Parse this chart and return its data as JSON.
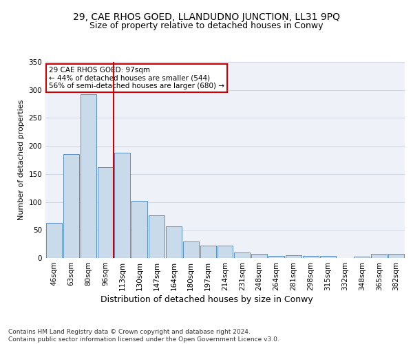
{
  "title": "29, CAE RHOS GOED, LLANDUDNO JUNCTION, LL31 9PQ",
  "subtitle": "Size of property relative to detached houses in Conwy",
  "xlabel": "Distribution of detached houses by size in Conwy",
  "ylabel": "Number of detached properties",
  "categories": [
    "46sqm",
    "63sqm",
    "80sqm",
    "96sqm",
    "113sqm",
    "130sqm",
    "147sqm",
    "164sqm",
    "180sqm",
    "197sqm",
    "214sqm",
    "231sqm",
    "248sqm",
    "264sqm",
    "281sqm",
    "298sqm",
    "315sqm",
    "332sqm",
    "348sqm",
    "365sqm",
    "382sqm"
  ],
  "values": [
    63,
    185,
    292,
    162,
    188,
    102,
    76,
    57,
    30,
    22,
    22,
    10,
    7,
    4,
    5,
    4,
    4,
    0,
    3,
    7,
    7
  ],
  "bar_color": "#c9daea",
  "bar_edge_color": "#5a8fc3",
  "grid_color": "#d0d8e8",
  "bg_color": "#eef2f8",
  "vline_x": 3,
  "vline_color": "#cc0000",
  "annotation_text": "29 CAE RHOS GOED: 97sqm\n← 44% of detached houses are smaller (544)\n56% of semi-detached houses are larger (680) →",
  "annotation_box_color": "#cc0000",
  "footer": "Contains HM Land Registry data © Crown copyright and database right 2024.\nContains public sector information licensed under the Open Government Licence v3.0.",
  "ylim": [
    0,
    350
  ],
  "title_fontsize": 10,
  "subtitle_fontsize": 9,
  "xlabel_fontsize": 9,
  "ylabel_fontsize": 8,
  "tick_fontsize": 7.5,
  "footer_fontsize": 6.5,
  "annotation_fontsize": 7.5
}
